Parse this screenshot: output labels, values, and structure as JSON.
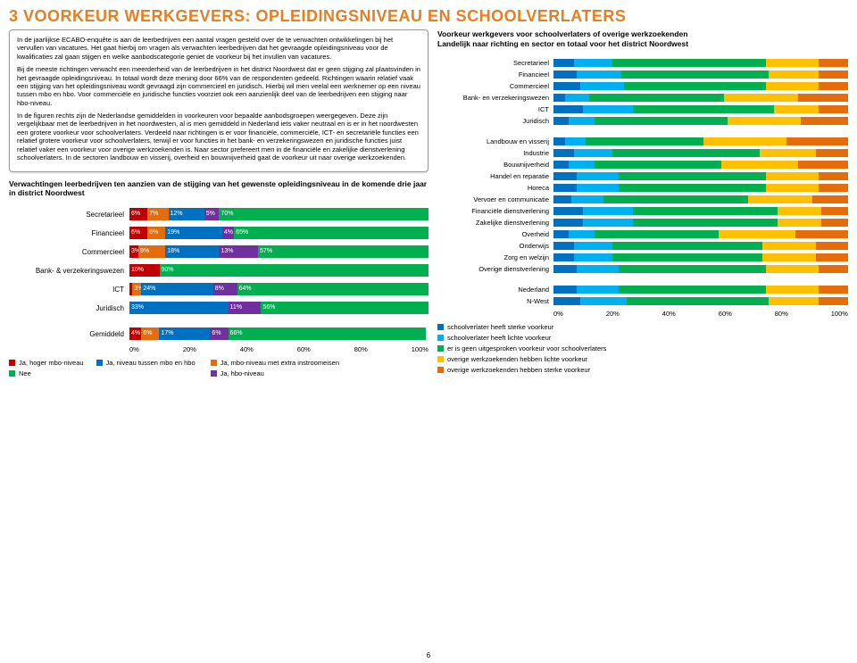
{
  "page_title": "3  VOORKEUR WERKGEVERS: OPLEIDINGSNIVEAU EN SCHOOLVERLATERS",
  "intro_paragraphs": [
    "In de jaarlijkse ECABO-enquête is aan de leerbedrijven een aantal vragen gesteld over de te verwachten ontwikkelingen bij het vervullen van vacatures. Het gaat hierbij om vragen als verwachten leerbedrijven dat het gevraagde opleidingsniveau voor de kwalificaties zal gaan stijgen en welke aanbodscategorie geniet de voorkeur bij het invullen van vacatures.",
    "Bij de meeste richtingen verwacht een meerderheid van de leerbedrijven in het district Noordwest dat er geen stijging zal plaatsvinden in het gevraagde opleidingsniveau. In totaal wordt deze mening door 66% van de respondenten gedeeld. Richtingen waarin relatief vaak een stijging van het opleidingsniveau wordt gevraagd zijn commercieel en juridisch. Hierbij wil men veelal een werknemer op een niveau tussen mbo en hbo. Voor commerciële en juridische functies voorziet ook een aanzienlijk deel van de leerbedrijven een stijging naar hbo-niveau.",
    "In de figuren rechts zijn de Nederlandse gemiddelden in voorkeuren voor bepaalde aanbodsgroepen weergegeven. Deze zijn vergelijkbaar met de leerbedrijven in het noordwesten, al is men gemiddeld in Nederland iets vaker neutraal en is er in het noordwesten een grotere voorkeur voor schoolverlaters. Verdeeld naar richtingen is er voor financiële, commerciële, ICT- en secretariële functies een relatief grotere voorkeur voor schoolverlaters, terwijl er voor functies in het bank- en verzekeringswezen en juridische functies juist relatief vaker een voorkeur voor overige werkzoekenden is. Naar sector prefereert men in de financiële en zakelijke dienstverlening schoolverlaters. In de sectoren landbouw en visserij, overheid en bouwnijverheid gaat de voorkeur uit naar overige werkzoekenden."
  ],
  "chart1": {
    "title": "Verwachtingen leerbedrijven ten aanzien van de stijging van het gewenste opleidingsniveau in de komende drie jaar in district Noordwest",
    "colors": [
      "#c00000",
      "#e46c0a",
      "#0070c0",
      "#7030a0",
      "#00b050"
    ],
    "categories": [
      {
        "label": "Secretarieel",
        "vals": [
          6,
          7,
          12,
          5,
          70
        ]
      },
      {
        "label": "Financieel",
        "vals": [
          6,
          6,
          19,
          4,
          65
        ]
      },
      {
        "label": "Commercieel",
        "vals": [
          3,
          9,
          18,
          13,
          57
        ]
      },
      {
        "label": "Bank- & verzekeringswezen",
        "vals": [
          10,
          0,
          0,
          0,
          90
        ]
      },
      {
        "label": "ICT",
        "vals": [
          1,
          3,
          24,
          8,
          64
        ]
      },
      {
        "label": "Juridisch",
        "vals": [
          0,
          0,
          33,
          11,
          56
        ]
      },
      {
        "label": "Gemiddeld",
        "vals": [
          4,
          6,
          17,
          6,
          66
        ],
        "gap_before": true
      }
    ],
    "axis_ticks": [
      "0%",
      "20%",
      "40%",
      "60%",
      "80%",
      "100%"
    ],
    "legend": [
      {
        "color": "#c00000",
        "label": "Ja, hoger mbo-niveau"
      },
      {
        "color": "#e46c0a",
        "label": "Ja, mbo-niveau met extra instroomeisen"
      },
      {
        "color": "#0070c0",
        "label": "Ja, niveau tussen mbo en hbo"
      },
      {
        "color": "#7030a0",
        "label": "Ja, hbo-niveau"
      },
      {
        "color": "#00b050",
        "label": "Nee"
      }
    ]
  },
  "chart2": {
    "title": "Voorkeur werkgevers voor schoolverlaters of overige werkzoekenden\nLandelijk naar richting en sector en totaal voor het district Noordwest",
    "colors": [
      "#0070c0",
      "#00b0f0",
      "#00b050",
      "#ffc000",
      "#e46c0a"
    ],
    "groups": [
      {
        "rows": [
          {
            "label": "Secretarieel",
            "vals": [
              7,
              13,
              52,
              18,
              10
            ]
          },
          {
            "label": "Financieel",
            "vals": [
              8,
              15,
              50,
              17,
              10
            ]
          },
          {
            "label": "Commercieel",
            "vals": [
              9,
              15,
              48,
              18,
              10
            ]
          },
          {
            "label": "Bank- en verzekeringswezen",
            "vals": [
              4,
              8,
              46,
              25,
              17
            ]
          },
          {
            "label": "ICT",
            "vals": [
              10,
              17,
              48,
              15,
              10
            ]
          },
          {
            "label": "Juridisch",
            "vals": [
              5,
              9,
              45,
              25,
              16
            ]
          }
        ]
      },
      {
        "rows": [
          {
            "label": "Landbouw en visserij",
            "vals": [
              4,
              7,
              40,
              28,
              21
            ]
          },
          {
            "label": "Industrie",
            "vals": [
              7,
              13,
              50,
              19,
              11
            ]
          },
          {
            "label": "Bouwnijverheid",
            "vals": [
              5,
              9,
              43,
              26,
              17
            ]
          },
          {
            "label": "Handel en reparatie",
            "vals": [
              8,
              14,
              50,
              18,
              10
            ]
          },
          {
            "label": "Horeca",
            "vals": [
              8,
              14,
              50,
              18,
              10
            ]
          },
          {
            "label": "Vervoer en communicatie",
            "vals": [
              6,
              11,
              49,
              22,
              12
            ]
          },
          {
            "label": "Financiële dienstverlening",
            "vals": [
              10,
              17,
              49,
              15,
              9
            ]
          },
          {
            "label": "Zakelijke dienstverlening",
            "vals": [
              10,
              17,
              49,
              15,
              9
            ]
          },
          {
            "label": "Overheid",
            "vals": [
              5,
              9,
              42,
              26,
              18
            ]
          },
          {
            "label": "Onderwijs",
            "vals": [
              7,
              13,
              51,
              18,
              11
            ]
          },
          {
            "label": "Zorg en welzijn",
            "vals": [
              7,
              13,
              51,
              18,
              11
            ]
          },
          {
            "label": "Overige dienstverlening",
            "vals": [
              8,
              14,
              50,
              18,
              10
            ]
          }
        ]
      },
      {
        "rows": [
          {
            "label": "Nederland",
            "vals": [
              8,
              14,
              50,
              18,
              10
            ]
          },
          {
            "label": "N-West",
            "vals": [
              9,
              16,
              48,
              17,
              10
            ]
          }
        ]
      }
    ],
    "axis_ticks": [
      "0%",
      "20%",
      "40%",
      "60%",
      "80%",
      "100%"
    ],
    "legend": [
      {
        "color": "#0070c0",
        "label": "schoolverlater heeft sterke voorkeur"
      },
      {
        "color": "#00b0f0",
        "label": "schoolverlater heeft lichte voorkeur"
      },
      {
        "color": "#00b050",
        "label": "er is geen uitgesproken voorkeur voor schoolverlaters"
      },
      {
        "color": "#ffc000",
        "label": "overige werkzoekenden hebben lichte voorkeur"
      },
      {
        "color": "#e46c0a",
        "label": "overige werkzoekenden hebben sterke voorkeur"
      }
    ]
  },
  "page_number": "6"
}
